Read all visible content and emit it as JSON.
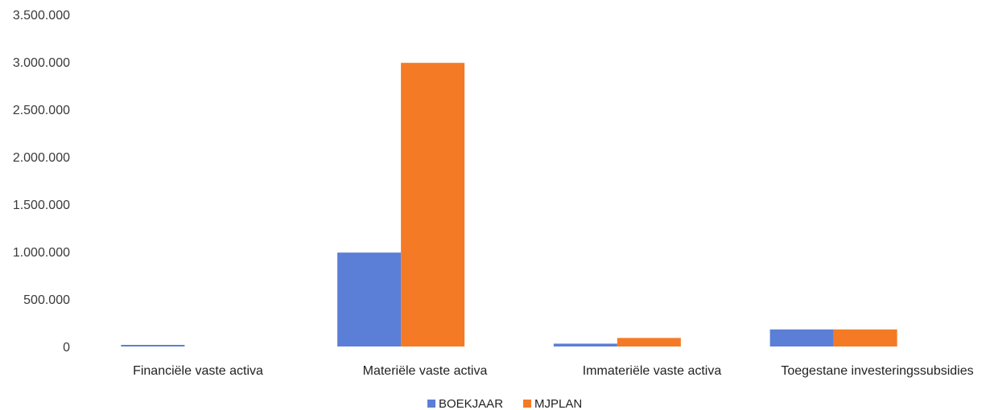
{
  "chart_data": {
    "type": "bar",
    "categories": [
      "Financiële vaste activa",
      "Materiële vaste activa",
      "Immateriële vaste activa",
      "Toegestane investeringssubsidies"
    ],
    "series": [
      {
        "name": "BOEKJAAR",
        "color": "#5b7fd6",
        "values": [
          10000,
          990000,
          30000,
          180000
        ]
      },
      {
        "name": "MJPLAN",
        "color": "#f47a26",
        "values": [
          0,
          2990000,
          90000,
          180000
        ]
      }
    ],
    "y_ticks": [
      "0",
      "500.000",
      "1.000.000",
      "1.500.000",
      "2.000.000",
      "2.500.000",
      "3.000.000",
      "3.500.000"
    ],
    "ylim": [
      0,
      3500000
    ],
    "grid": false,
    "legend_position": "bottom-center"
  }
}
